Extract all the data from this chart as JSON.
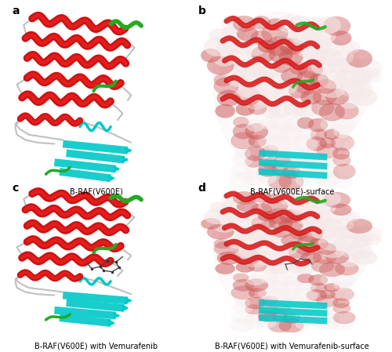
{
  "figure_width": 5.0,
  "figure_height": 4.49,
  "dpi": 100,
  "background_color": "#ffffff",
  "panels": [
    {
      "id": "a",
      "label": "a",
      "caption": "B-RAF(V600E)",
      "col": 0,
      "row": 0
    },
    {
      "id": "b",
      "label": "b",
      "caption": "B-RAF(V600E)-surface",
      "col": 1,
      "row": 0
    },
    {
      "id": "c",
      "label": "c",
      "caption": "B-RAF(V600E) with Vemurafenib",
      "col": 0,
      "row": 1
    },
    {
      "id": "d",
      "label": "d",
      "caption": "B-RAF(V600E) with Vemurafenib-surface",
      "col": 1,
      "row": 1
    }
  ],
  "label_fontsize": 10,
  "caption_fontsize": 7,
  "label_color": "#000000",
  "caption_color": "#000000",
  "label_fontweight": "bold",
  "helix_color": "#cc1111",
  "helix_highlight": "#ff3333",
  "sheet_color": "#00c8c8",
  "loop_color": "#c0c0c0",
  "green_color": "#22aa22",
  "ligand_color": "#555555",
  "surface_pink": "#f5e0e0",
  "surface_red": "#cc5555",
  "surface_white": "#ffffff"
}
